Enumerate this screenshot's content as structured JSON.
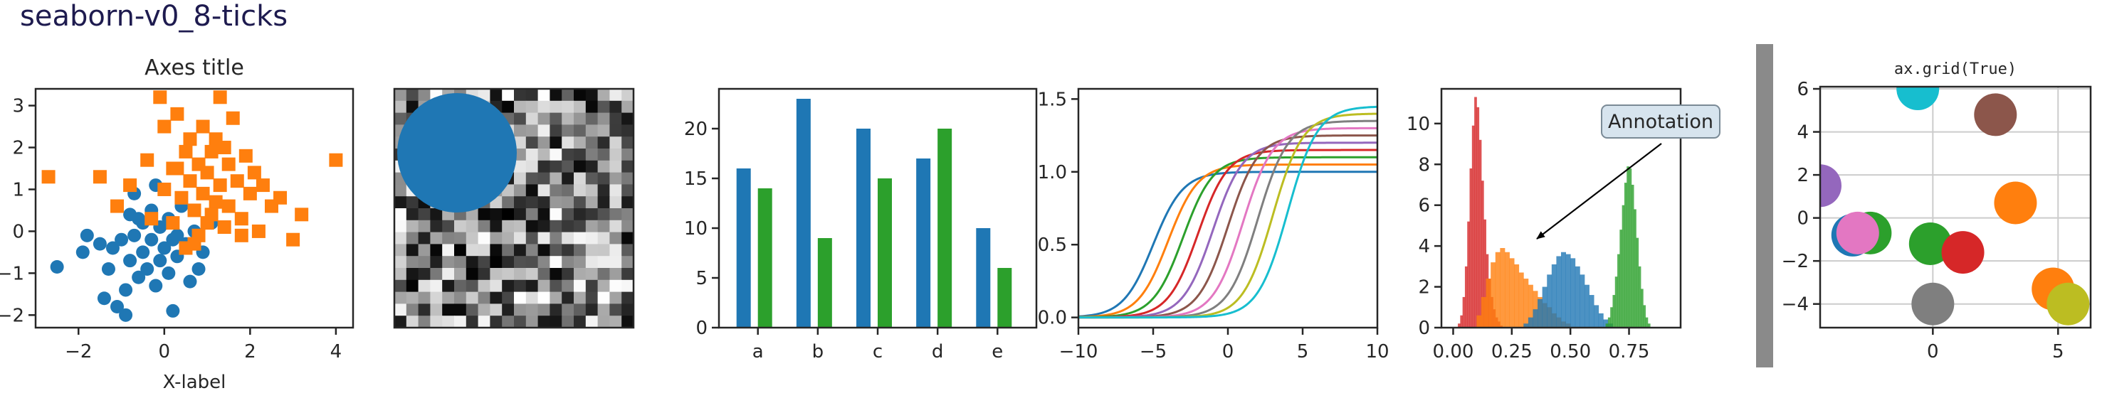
{
  "page": {
    "title": "seaborn-v0_8-ticks"
  },
  "chart_data": [
    {
      "type": "scatter",
      "title": "Axes title",
      "xlabel": "X-label",
      "ylabel": "",
      "xlim": [
        -3.0,
        4.4
      ],
      "ylim": [
        -2.3,
        3.4
      ],
      "xticks": [
        -2,
        0,
        2,
        4
      ],
      "yticks": [
        -2,
        -1,
        0,
        1,
        2,
        3
      ],
      "series": [
        {
          "marker": "circle",
          "color": "#1f77b4",
          "points": [
            [
              -2.5,
              -0.85
            ],
            [
              -1.8,
              -0.1
            ],
            [
              -1.4,
              -1.6
            ],
            [
              -1.3,
              -0.9
            ],
            [
              -1.2,
              -0.4
            ],
            [
              -1.1,
              -1.8
            ],
            [
              -1.0,
              -0.2
            ],
            [
              -0.9,
              -1.4
            ],
            [
              -0.8,
              0.4
            ],
            [
              -0.8,
              -0.7
            ],
            [
              -0.7,
              -0.1
            ],
            [
              -0.6,
              -1.1
            ],
            [
              -0.5,
              0.2
            ],
            [
              -0.5,
              -0.5
            ],
            [
              -0.4,
              -0.9
            ],
            [
              -0.3,
              0.5
            ],
            [
              -0.3,
              -0.2
            ],
            [
              -0.2,
              -1.3
            ],
            [
              -0.1,
              0.1
            ],
            [
              -0.1,
              -0.7
            ],
            [
              0.0,
              -0.4
            ],
            [
              0.1,
              0.3
            ],
            [
              0.1,
              -1.0
            ],
            [
              0.2,
              -0.2
            ],
            [
              0.3,
              -0.6
            ],
            [
              0.4,
              0.6
            ],
            [
              0.5,
              -0.3
            ],
            [
              0.6,
              -1.2
            ],
            [
              0.7,
              0.0
            ],
            [
              0.9,
              -0.5
            ],
            [
              1.1,
              0.2
            ],
            [
              -1.9,
              -0.5
            ],
            [
              -0.7,
              0.9
            ],
            [
              -0.2,
              1.1
            ],
            [
              0.3,
              -0.1
            ],
            [
              -1.5,
              -0.3
            ],
            [
              0.8,
              -0.9
            ],
            [
              -0.9,
              -2.0
            ],
            [
              0.2,
              -1.9
            ],
            [
              -0.6,
              0.3
            ]
          ]
        },
        {
          "marker": "square",
          "color": "#ff7f0e",
          "points": [
            [
              -2.7,
              1.3
            ],
            [
              -1.5,
              1.3
            ],
            [
              -1.1,
              0.6
            ],
            [
              -0.8,
              1.1
            ],
            [
              -0.4,
              1.7
            ],
            [
              -0.3,
              0.3
            ],
            [
              -0.1,
              3.2
            ],
            [
              0.0,
              2.5
            ],
            [
              0.0,
              1.0
            ],
            [
              0.2,
              0.2
            ],
            [
              0.2,
              1.5
            ],
            [
              0.3,
              2.8
            ],
            [
              0.4,
              0.8
            ],
            [
              0.5,
              1.9
            ],
            [
              0.5,
              -0.4
            ],
            [
              0.6,
              1.2
            ],
            [
              0.6,
              2.2
            ],
            [
              0.7,
              0.5
            ],
            [
              0.8,
              1.6
            ],
            [
              0.8,
              -0.1
            ],
            [
              0.9,
              2.5
            ],
            [
              0.9,
              0.9
            ],
            [
              1.0,
              1.4
            ],
            [
              1.0,
              0.2
            ],
            [
              1.1,
              1.9
            ],
            [
              1.2,
              0.7
            ],
            [
              1.2,
              2.2
            ],
            [
              1.3,
              1.1
            ],
            [
              1.3,
              3.2
            ],
            [
              1.4,
              0.1
            ],
            [
              1.5,
              1.6
            ],
            [
              1.5,
              0.6
            ],
            [
              1.6,
              2.7
            ],
            [
              1.7,
              1.2
            ],
            [
              1.8,
              0.3
            ],
            [
              1.9,
              1.8
            ],
            [
              2.0,
              0.9
            ],
            [
              2.1,
              1.4
            ],
            [
              2.2,
              0.0
            ],
            [
              2.3,
              1.1
            ],
            [
              2.5,
              0.6
            ],
            [
              2.7,
              0.8
            ],
            [
              3.0,
              -0.2
            ],
            [
              3.2,
              0.4
            ],
            [
              4.0,
              1.7
            ],
            [
              1.4,
              2.0
            ],
            [
              0.3,
              1.5
            ],
            [
              0.7,
              -0.3
            ],
            [
              1.1,
              0.4
            ],
            [
              1.8,
              -0.1
            ]
          ]
        }
      ]
    },
    {
      "type": "heatmap",
      "colormap": "gray",
      "grid": [
        20,
        20
      ],
      "overlay": {
        "shape": "circle",
        "color": "#1f77b4"
      }
    },
    {
      "type": "bar",
      "categories": [
        "a",
        "b",
        "c",
        "d",
        "e"
      ],
      "ylim": [
        0,
        24
      ],
      "yticks": [
        0,
        5,
        10,
        15,
        20
      ],
      "series": [
        {
          "color": "#1f77b4",
          "values": [
            16,
            23,
            20,
            17,
            10
          ]
        },
        {
          "color": "#2ca02c",
          "values": [
            14,
            9,
            15,
            20,
            6
          ]
        }
      ]
    },
    {
      "type": "line",
      "xlim": [
        -10,
        10
      ],
      "ylim": [
        -0.07,
        1.57
      ],
      "xticks": [
        -10,
        -5,
        0,
        5,
        10
      ],
      "yticks": [
        0.0,
        0.5,
        1.0,
        1.5
      ],
      "yticklabels": [
        "0.0",
        "0.5",
        "1.0",
        "1.5"
      ],
      "curve": "sigmoid",
      "series": [
        {
          "color": "#1f77b4",
          "shift": -5,
          "height": 1.0
        },
        {
          "color": "#ff7f0e",
          "shift": -4,
          "height": 1.05
        },
        {
          "color": "#2ca02c",
          "shift": -3,
          "height": 1.1
        },
        {
          "color": "#d62728",
          "shift": -2,
          "height": 1.15
        },
        {
          "color": "#9467bd",
          "shift": -1,
          "height": 1.2
        },
        {
          "color": "#8c564b",
          "shift": 0,
          "height": 1.25
        },
        {
          "color": "#e377c2",
          "shift": 1,
          "height": 1.3
        },
        {
          "color": "#7f7f7f",
          "shift": 2,
          "height": 1.35
        },
        {
          "color": "#bcbd22",
          "shift": 3,
          "height": 1.4
        },
        {
          "color": "#17becf",
          "shift": 4,
          "height": 1.45
        }
      ]
    },
    {
      "type": "area",
      "subtype": "histogram",
      "xlim": [
        -0.05,
        0.97
      ],
      "ylim": [
        0,
        11.7
      ],
      "xticks": [
        0.0,
        0.25,
        0.5,
        0.75
      ],
      "xticklabels": [
        "0.00",
        "0.25",
        "0.50",
        "0.75"
      ],
      "yticks": [
        0,
        2,
        4,
        6,
        8,
        10
      ],
      "annotation": {
        "text": "Annotation",
        "points_to": [
          0.26,
          4.4
        ]
      },
      "series": [
        {
          "color": "#d62728",
          "opacity": 0.8,
          "bins": {
            "start": 0.02,
            "width": 0.01,
            "heights": [
              0.2,
              0.6,
              1.5,
              3.0,
              5.2,
              7.8,
              9.9,
              11.3,
              10.8,
              9.2,
              7.2,
              5.3,
              3.6,
              2.4,
              1.5,
              0.9,
              0.5,
              0.3,
              0.1
            ]
          }
        },
        {
          "color": "#ff7f0e",
          "opacity": 0.8,
          "bins": {
            "start": 0.1,
            "width": 0.02,
            "heights": [
              0.6,
              1.5,
              2.4,
              3.2,
              3.7,
              3.9,
              3.7,
              3.4,
              3.1,
              2.7,
              2.4,
              2.1,
              1.8,
              1.5,
              1.2,
              1.0,
              0.7,
              0.5,
              0.3,
              0.2
            ]
          }
        },
        {
          "color": "#1f77b4",
          "opacity": 0.8,
          "bins": {
            "start": 0.3,
            "width": 0.02,
            "heights": [
              0.2,
              0.5,
              0.9,
              1.4,
              2.0,
              2.6,
              3.1,
              3.5,
              3.7,
              3.6,
              3.4,
              3.0,
              2.6,
              2.1,
              1.6,
              1.1,
              0.7,
              0.4,
              0.2
            ]
          }
        },
        {
          "color": "#2ca02c",
          "opacity": 0.8,
          "bins": {
            "start": 0.65,
            "width": 0.01,
            "heights": [
              0.2,
              0.5,
              1.0,
              1.6,
              2.5,
              3.6,
              4.8,
              6.0,
              7.1,
              7.9,
              7.8,
              7.0,
              5.8,
              4.4,
              3.0,
              1.9,
              1.1,
              0.5,
              0.2
            ]
          }
        }
      ]
    },
    {
      "type": "scatter",
      "title": "ax.grid(True)",
      "xlim": [
        -4.5,
        6.3
      ],
      "ylim": [
        -5.1,
        6.1
      ],
      "xticks": [
        0,
        5
      ],
      "yticks": [
        -4,
        -2,
        0,
        2,
        4,
        6
      ],
      "grid": true,
      "points": [
        {
          "x": -0.6,
          "y": 6.0,
          "color": "#17becf"
        },
        {
          "x": 2.5,
          "y": 4.8,
          "color": "#8c564b"
        },
        {
          "x": -4.5,
          "y": 1.5,
          "color": "#9467bd"
        },
        {
          "x": 3.3,
          "y": 0.7,
          "color": "#ff7f0e"
        },
        {
          "x": -2.5,
          "y": -0.7,
          "color": "#2ca02c"
        },
        {
          "x": -3.2,
          "y": -0.8,
          "color": "#1f77b4"
        },
        {
          "x": -3.0,
          "y": -0.7,
          "color": "#e377c2"
        },
        {
          "x": -0.1,
          "y": -1.2,
          "color": "#2ca02c"
        },
        {
          "x": 1.2,
          "y": -1.6,
          "color": "#d62728"
        },
        {
          "x": 0.0,
          "y": -4.0,
          "color": "#7f7f7f"
        },
        {
          "x": 4.8,
          "y": -3.3,
          "color": "#ff7f0e"
        },
        {
          "x": 5.4,
          "y": -4.0,
          "color": "#bcbd22"
        }
      ]
    }
  ]
}
